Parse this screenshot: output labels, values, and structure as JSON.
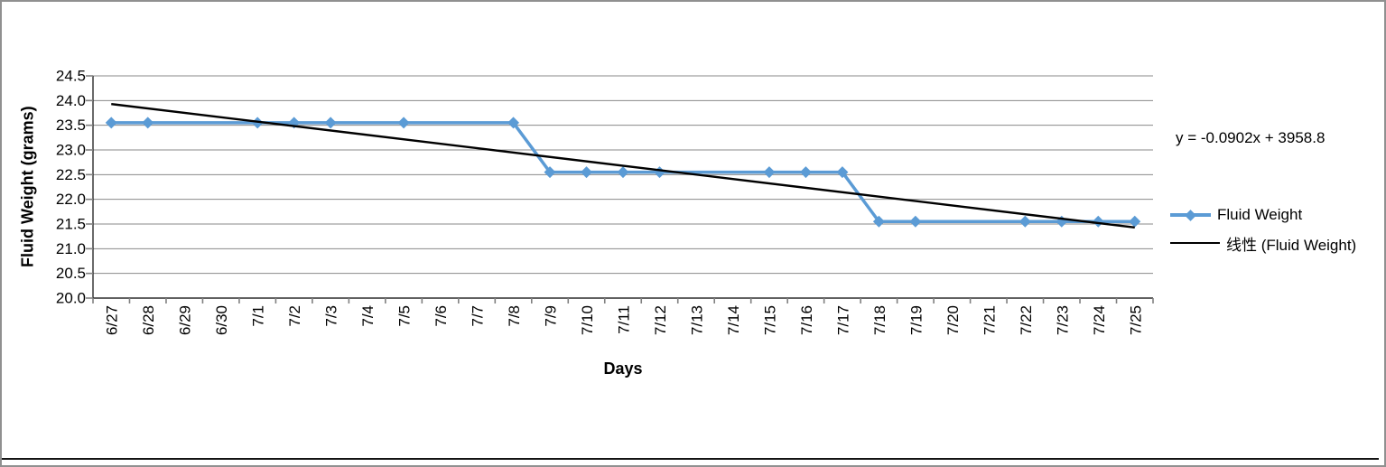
{
  "frame": {
    "background": "#FFFFFF",
    "border_color": "#909090",
    "bottom_rule_color": "#141414"
  },
  "chart_data": {
    "type": "line",
    "title": "",
    "xlabel": "Days",
    "ylabel": "Fluid Weight (grams)",
    "ylim": [
      20.0,
      24.5
    ],
    "y_tick_step": 0.5,
    "y_tick_labels": [
      "20.0",
      "20.5",
      "21.0",
      "21.5",
      "22.0",
      "22.5",
      "23.0",
      "23.5",
      "24.0",
      "24.5"
    ],
    "x": [
      "6/27",
      "6/28",
      "6/29",
      "6/30",
      "7/1",
      "7/2",
      "7/3",
      "7/4",
      "7/5",
      "7/6",
      "7/7",
      "7/8",
      "7/9",
      "7/10",
      "7/11",
      "7/12",
      "7/13",
      "7/14",
      "7/15",
      "7/16",
      "7/17",
      "7/18",
      "7/19",
      "7/20",
      "7/21",
      "7/22",
      "7/23",
      "7/24",
      "7/25"
    ],
    "grid": "horizontal",
    "grid_color": "#8A8A8A",
    "axis_color": "#2B2B2B",
    "tick_color": "#808080",
    "text_color": "#000000",
    "legend_position": "right-middle",
    "series": [
      {
        "name": "Fluid Weight",
        "color": "#5B9BD5",
        "marker": "diamond",
        "connect_gaps": true,
        "values": [
          23.55,
          23.55,
          null,
          null,
          23.55,
          23.55,
          23.55,
          null,
          23.55,
          null,
          null,
          23.55,
          22.55,
          22.55,
          22.55,
          22.55,
          null,
          null,
          22.55,
          22.55,
          22.55,
          21.55,
          21.55,
          null,
          null,
          21.55,
          21.55,
          21.55,
          21.55
        ]
      }
    ],
    "trendline": {
      "name": "线性 (Fluid Weight)",
      "equation": "y = -0.0902x + 3958.8",
      "color": "#000000",
      "start_value": 23.93,
      "end_value": 21.43
    }
  }
}
